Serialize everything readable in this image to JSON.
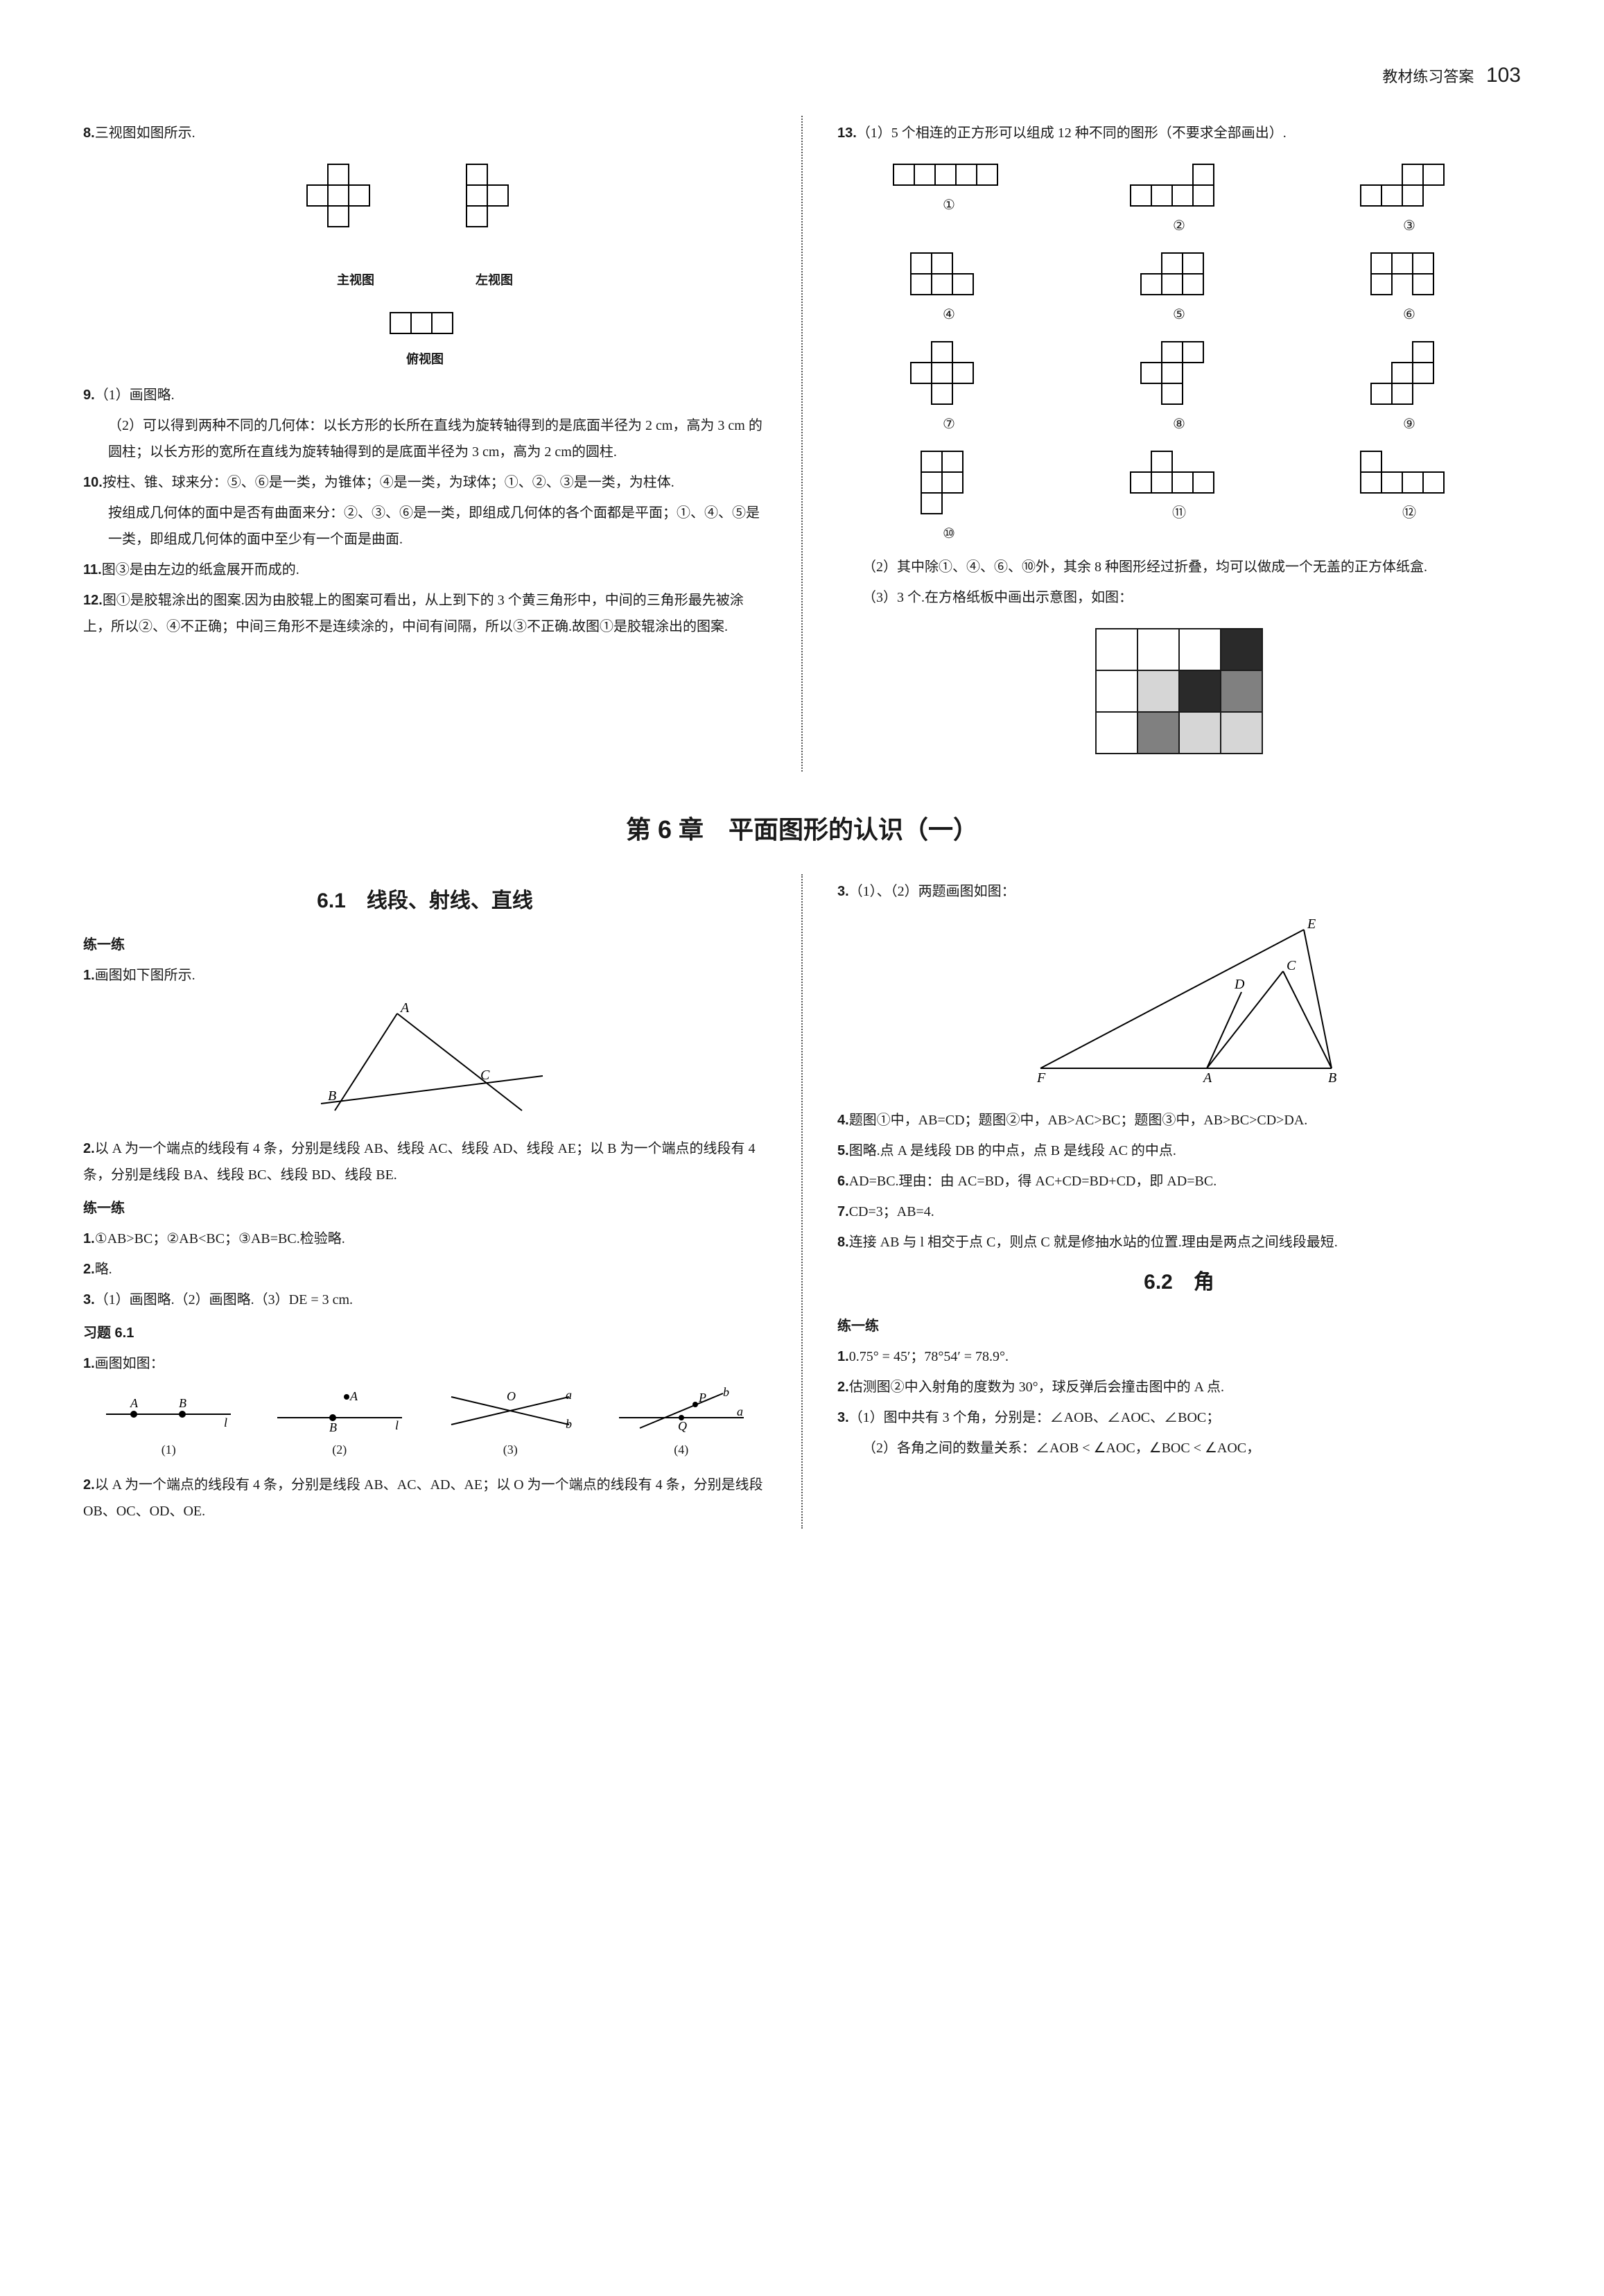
{
  "header": {
    "label": "教材练习答案",
    "page": "103"
  },
  "left": {
    "q8": "三视图如图所示.",
    "view_labels": {
      "front": "主视图",
      "left": "左视图",
      "top": "俯视图"
    },
    "q9a": "（1）画图略.",
    "q9b": "（2）可以得到两种不同的几何体：以长方形的长所在直线为旋转轴得到的是底面半径为 2 cm，高为 3 cm 的圆柱；以长方形的宽所在直线为旋转轴得到的是底面半径为 3 cm，高为 2 cm的圆柱.",
    "q10a": "按柱、锥、球来分：⑤、⑥是一类，为锥体；④是一类，为球体；①、②、③是一类，为柱体.",
    "q10b": "按组成几何体的面中是否有曲面来分：②、③、⑥是一类，即组成几何体的各个面都是平面；①、④、⑤是一类，即组成几何体的面中至少有一个面是曲面.",
    "q11": "图③是由左边的纸盒展开而成的.",
    "q12": "图①是胶辊涂出的图案.因为由胶辊上的图案可看出，从上到下的 3 个黄三角形中，中间的三角形最先被涂上，所以②、④不正确；中间三角形不是连续涂的，中间有间隔，所以③不正确.故图①是胶辊涂出的图案."
  },
  "right": {
    "q13a": "（1）5 个相连的正方形可以组成 12 种不同的图形（不要求全部画出）.",
    "pento_labels": [
      "①",
      "②",
      "③",
      "④",
      "⑤",
      "⑥",
      "⑦",
      "⑧",
      "⑨",
      "⑩",
      "⑪",
      "⑫"
    ],
    "q13b": "（2）其中除①、④、⑥、⑩外，其余 8 种图形经过折叠，均可以做成一个无盖的正方体纸盒.",
    "q13c": "（3）3 个.在方格纸板中画出示意图，如图："
  },
  "grid3x4": {
    "colors": {
      "white": "#ffffff",
      "light": "#d6d6d6",
      "mid": "#808080",
      "dark": "#2a2a2a",
      "border": "#1a1a1a"
    },
    "cells": [
      [
        "white",
        "white",
        "white",
        "dark"
      ],
      [
        "white",
        "light",
        "dark",
        "mid"
      ],
      [
        "white",
        "mid",
        "light",
        "light"
      ]
    ]
  },
  "chapter": "第 6 章　平面图形的认识（一）",
  "sec61": {
    "title": "6.1　线段、射线、直线",
    "p_title1": "练一练",
    "p1": "画图如下图所示.",
    "p2": "以 A 为一个端点的线段有 4 条，分别是线段 AB、线段 AC、线段 AD、线段 AE；以 B 为一个端点的线段有 4 条，分别是线段 BA、线段 BC、线段 BD、线段 BE.",
    "p_title2": "练一练",
    "p3": "①AB>BC；②AB<BC；③AB=BC.检验略.",
    "p4": "略.",
    "p5": "（1）画图略.（2）画图略.（3）DE = 3 cm.",
    "ex_title": "习题 6.1",
    "ex1": "画图如图：",
    "line_labels": {
      "l1": "(1)",
      "l2": "(2)",
      "l3": "(3)",
      "l4": "(4)"
    },
    "ex2": "以 A 为一个端点的线段有 4 条，分别是线段 AB、AC、AD、AE；以 O 为一个端点的线段有 4 条，分别是线段 OB、OC、OD、OE."
  },
  "sec61r": {
    "r3": "（1）、（2）两题画图如图：",
    "r4": "题图①中，AB=CD；题图②中，AB>AC>BC；题图③中，AB>BC>CD>DA.",
    "r5": "图略.点 A 是线段 DB 的中点，点 B 是线段 AC 的中点.",
    "r6": "AD=BC.理由：由 AC=BD，得 AC+CD=BD+CD，即 AD=BC.",
    "r7": "CD=3；AB=4.",
    "r8": "连接 AB 与 l 相交于点 C，则点 C 就是修抽水站的位置.理由是两点之间线段最短."
  },
  "sec62": {
    "title": "6.2　角",
    "p_title": "练一练",
    "p1": "0.75° = 45′；78°54′ = 78.9°.",
    "p2": "估测图②中入射角的度数为 30°，球反弹后会撞击图中的 A 点.",
    "p3": "（1）图中共有 3 个角，分别是：∠AOB、∠AOC、∠BOC；",
    "p3b": "（2）各角之间的数量关系：∠AOB < ∠AOC，∠BOC < ∠AOC，"
  },
  "triangle_labels": [
    "A",
    "B",
    "C",
    "D",
    "E",
    "F"
  ]
}
